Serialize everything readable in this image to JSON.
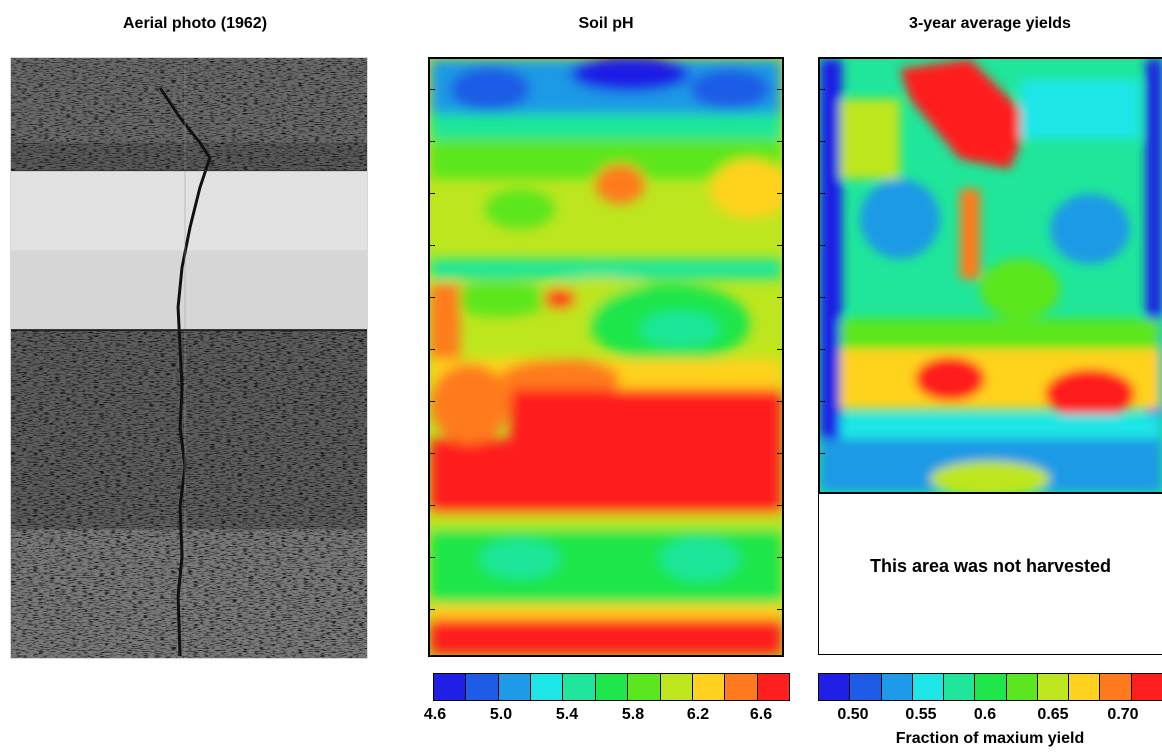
{
  "titles": {
    "aerial": "Aerial photo (1962)",
    "ph": "Soil pH",
    "yield": "3-year average yields"
  },
  "not_harvested_label": "This area was not harvested",
  "ph_colorbar": {
    "colors": [
      "#1f1fe6",
      "#1f5ce6",
      "#1f9ae6",
      "#1fe6e6",
      "#1fe69a",
      "#1fe64a",
      "#5ce61f",
      "#bde61f",
      "#ffd21f",
      "#ff7a1f",
      "#ff1f1f"
    ],
    "tick_labels": [
      "4.6",
      "5.0",
      "5.4",
      "5.8",
      "6.2",
      "6.6"
    ]
  },
  "yield_colorbar": {
    "colors": [
      "#1f1fe6",
      "#1f5ce6",
      "#1f9ae6",
      "#1fe6e6",
      "#1fe69a",
      "#1fe64a",
      "#5ce61f",
      "#bde61f",
      "#ffd21f",
      "#ff7a1f",
      "#ff1f1f"
    ],
    "tick_labels": [
      "0.50",
      "0.55",
      "0.6",
      "0.65",
      "0.70"
    ],
    "label": "Fraction of maxium yield"
  },
  "map_colors": {
    "red": "#ff1f1f",
    "orange": "#ff7a1f",
    "yellow": "#ffd21f",
    "yellowgreen": "#bde61f",
    "green": "#5ce61f",
    "brightgreen": "#1fe64a",
    "seagreen": "#1fe69a",
    "cyan": "#1fe6e6",
    "sky": "#1f9ae6",
    "blue": "#1f5ce6",
    "deepblue": "#1f1fe6"
  }
}
